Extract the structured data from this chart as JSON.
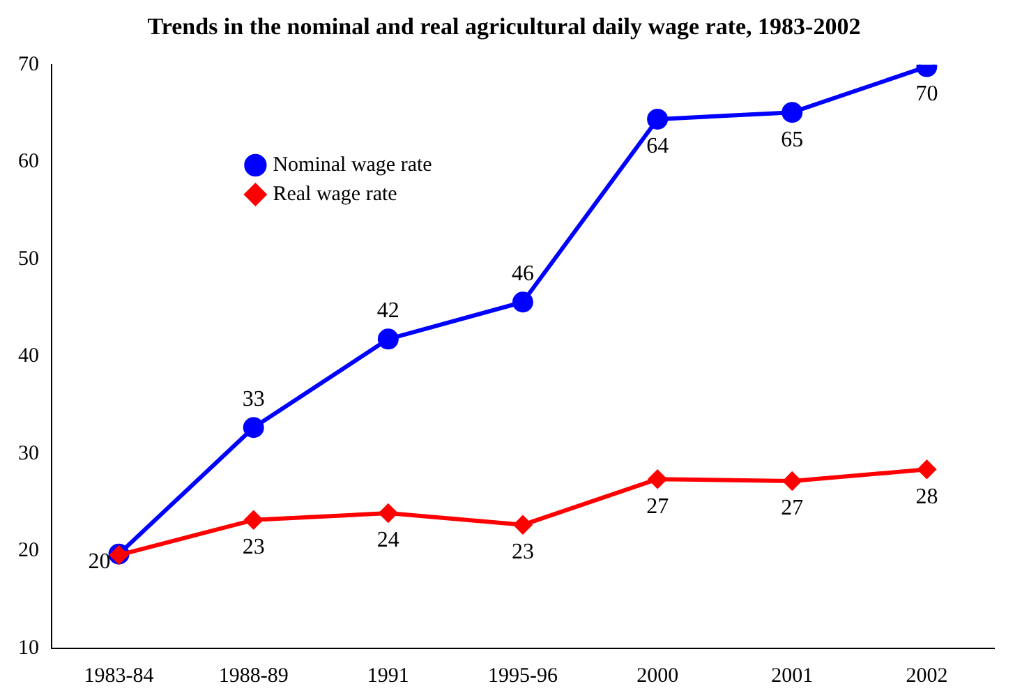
{
  "chart_data": {
    "type": "line",
    "title": "Trends in the nominal and real agricultural daily wage rate, 1983-2002",
    "categories": [
      "1983-84",
      "1988-89",
      "1991",
      "1995-96",
      "2000",
      "2001",
      "2002"
    ],
    "series": [
      {
        "name": "Nominal wage rate",
        "color": "#0000ff",
        "marker": "circle",
        "values": [
          19.7,
          32.7,
          41.8,
          45.6,
          64.4,
          65.1,
          69.8
        ],
        "value_labels": [
          "20",
          "33",
          "42",
          "46",
          "64",
          "65",
          "70"
        ]
      },
      {
        "name": "Real wage rate",
        "color": "#ff0000",
        "marker": "diamond",
        "values": [
          19.6,
          23.2,
          23.9,
          22.7,
          27.4,
          27.2,
          28.4
        ],
        "value_labels": [
          null,
          "23",
          "24",
          "23",
          "27",
          "27",
          "28"
        ]
      }
    ],
    "ylim": [
      10,
      70
    ],
    "yticks": [
      10,
      20,
      30,
      40,
      50,
      60,
      70
    ],
    "grid": false,
    "legend": "top left",
    "line_style": "solid"
  }
}
